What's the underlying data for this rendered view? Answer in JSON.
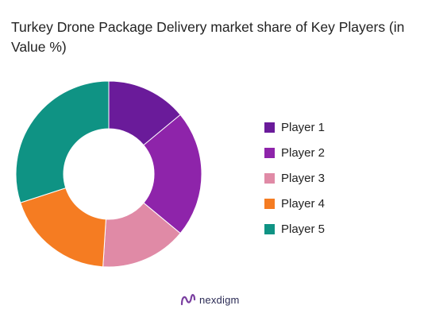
{
  "title": "Turkey Drone Package Delivery market share of Key Players (in Value %)",
  "brand": {
    "name": "nexdigm",
    "logo_icon": "nexdigm-logo-icon"
  },
  "chart_data": {
    "type": "pie",
    "donut": true,
    "title": "Turkey Drone Package Delivery market share of Key Players (in Value %)",
    "legend_position": "right",
    "slices": [
      {
        "label": "Player 1",
        "value": 14,
        "color": "#6a1b9a"
      },
      {
        "label": "Player 2",
        "value": 22,
        "color": "#8e24aa"
      },
      {
        "label": "Player 3",
        "value": 15,
        "color": "#e08aa6"
      },
      {
        "label": "Player 4",
        "value": 19,
        "color": "#f57c22"
      },
      {
        "label": "Player 5",
        "value": 30,
        "color": "#0f9384"
      }
    ]
  }
}
